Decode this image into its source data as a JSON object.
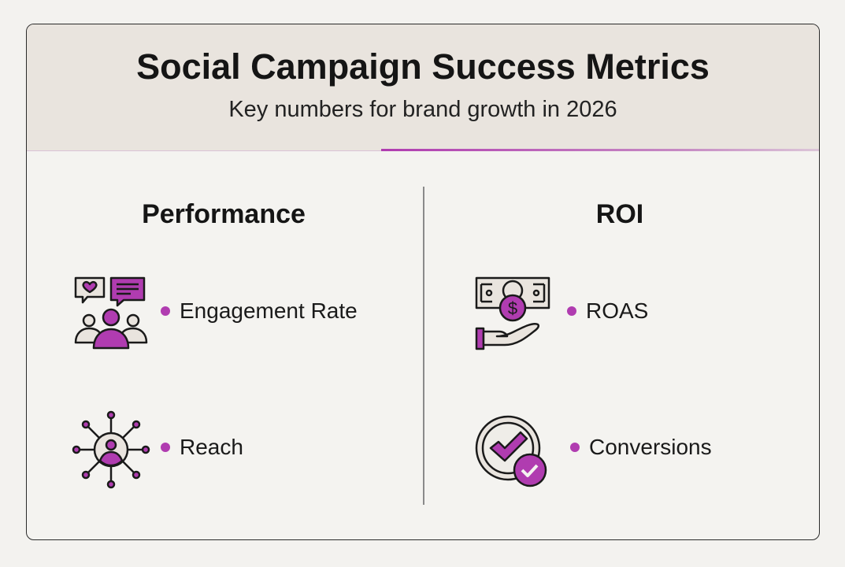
{
  "header": {
    "title": "Social Campaign Success Metrics",
    "subtitle": "Key numbers for brand growth in 2026"
  },
  "colors": {
    "accent": "#b03cb0",
    "header_bg": "#e9e4de"
  },
  "columns": [
    {
      "heading": "Performance",
      "items": [
        {
          "label": "Engagement Rate",
          "icon": "engagement-people-icon"
        },
        {
          "label": "Reach",
          "icon": "network-reach-icon"
        }
      ]
    },
    {
      "heading": "ROI",
      "items": [
        {
          "label": "ROAS",
          "icon": "money-hand-icon"
        },
        {
          "label": "Conversions",
          "icon": "checkmark-badge-icon"
        }
      ]
    }
  ]
}
